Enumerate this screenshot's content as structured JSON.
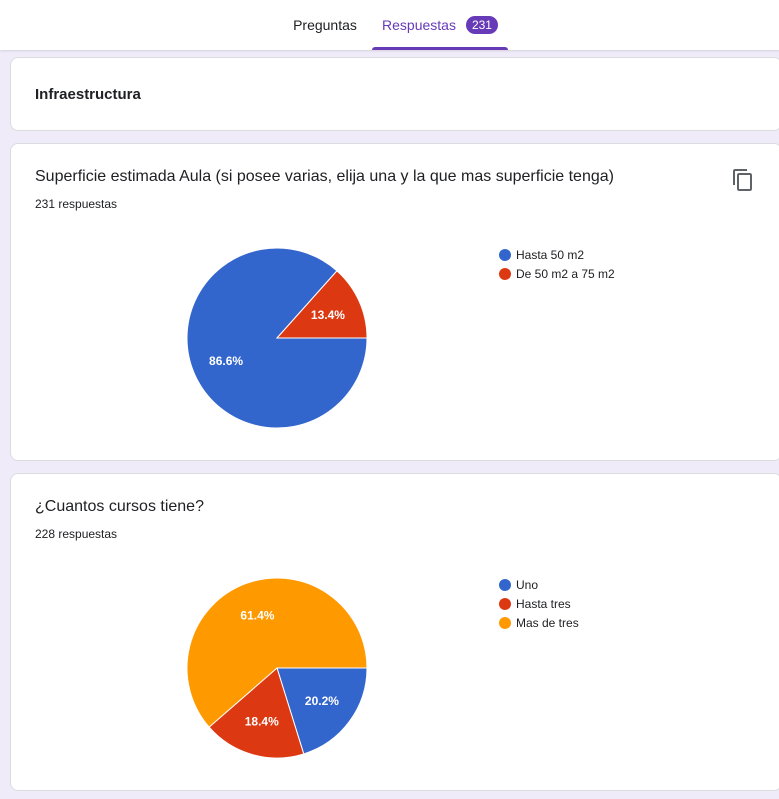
{
  "header": {
    "tab_questions": "Preguntas",
    "tab_responses": "Respuestas",
    "responses_badge": "231"
  },
  "section": {
    "title": "Infraestructura"
  },
  "questions": [
    {
      "title": "Superficie estimada Aula (si posee varias, elija una y la que mas superficie tenga)",
      "count": "231 respuestas",
      "copy_icon": "copy-icon",
      "chart_data": {
        "type": "pie",
        "categories": [
          "Hasta 50 m2",
          "De 50 m2 a 75 m2"
        ],
        "values": [
          86.6,
          13.4
        ],
        "labels": [
          "86.6%",
          "13.4%"
        ],
        "colors": [
          "#3366cc",
          "#dc3912"
        ],
        "legend": "right"
      }
    },
    {
      "title": "¿Cuantos cursos tiene?",
      "count": "228 respuestas",
      "chart_data": {
        "type": "pie",
        "categories": [
          "Uno",
          "Hasta tres",
          "Mas de tres"
        ],
        "values": [
          20.2,
          18.4,
          61.4
        ],
        "labels": [
          "20.2%",
          "18.4%",
          "61.4%"
        ],
        "colors": [
          "#3366cc",
          "#dc3912",
          "#ff9900"
        ],
        "legend": "right"
      }
    }
  ]
}
